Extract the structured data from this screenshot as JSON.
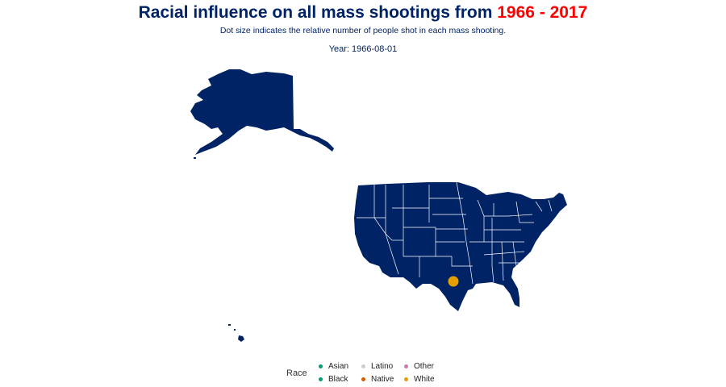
{
  "title": {
    "prefix": "Racial influence on all mass shootings from ",
    "range": "1966 - 2017",
    "range_color": "#ff0000",
    "color": "#002366"
  },
  "subtitle": "Dot size indicates the relative number of people shot in each mass shooting.",
  "year_label": "Year: 1966-08-01",
  "map": {
    "land_color": "#002366",
    "border_color": "#ffffff",
    "regions": [
      "Alaska",
      "Hawaii",
      "Contiguous United States"
    ]
  },
  "points": [
    {
      "name": "Texas shooting",
      "race": "White",
      "color": "#e69f00",
      "size": "large"
    }
  ],
  "legend": {
    "title": "Race",
    "items": [
      {
        "label": "Asian",
        "color": "#009e73"
      },
      {
        "label": "Latino",
        "color": "#cccccc"
      },
      {
        "label": "Other",
        "color": "#cc79a7"
      },
      {
        "label": "Black",
        "color": "#009e73"
      },
      {
        "label": "Native",
        "color": "#d55e00"
      },
      {
        "label": "White",
        "color": "#e69f00"
      }
    ]
  }
}
